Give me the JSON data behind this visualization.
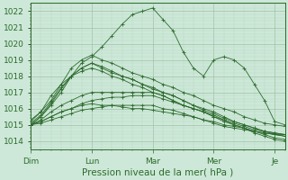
{
  "title": "Pression niveau de la mer( hPa )",
  "ylim": [
    1013.5,
    1022.5
  ],
  "yticks": [
    1014,
    1015,
    1016,
    1017,
    1018,
    1019,
    1020,
    1021,
    1022
  ],
  "day_labels": [
    "Dim",
    "Lun",
    "Mar",
    "Mer",
    "Je"
  ],
  "day_positions": [
    0,
    24,
    48,
    72,
    96
  ],
  "xlim": [
    0,
    100
  ],
  "bg_color": "#cde8d8",
  "plot_bg_color": "#cde8d8",
  "grid_major_color": "#a0c0a8",
  "grid_minor_color": "#b8d8c4",
  "line_color": "#2d6b2d",
  "marker_color": "#2d6b2d",
  "series": [
    {
      "x": [
        0,
        4,
        8,
        12,
        16,
        20,
        24,
        28,
        32,
        36,
        40,
        44,
        48,
        52,
        56,
        60,
        64,
        68,
        72,
        76,
        80,
        84,
        88,
        92,
        96,
        100
      ],
      "y": [
        1015.0,
        1015.5,
        1016.2,
        1017.0,
        1018.0,
        1018.8,
        1019.2,
        1019.8,
        1020.5,
        1021.2,
        1021.8,
        1022.0,
        1022.2,
        1021.5,
        1020.8,
        1019.5,
        1018.5,
        1018.0,
        1019.0,
        1019.2,
        1019.0,
        1018.5,
        1017.5,
        1016.5,
        1015.2,
        1015.0
      ]
    },
    {
      "x": [
        0,
        4,
        8,
        12,
        16,
        20,
        24,
        28,
        32,
        36,
        40,
        44,
        48,
        52,
        56,
        60,
        64,
        68,
        72,
        76,
        80,
        84,
        88,
        92,
        96,
        100
      ],
      "y": [
        1015.0,
        1015.3,
        1015.8,
        1016.2,
        1016.5,
        1016.8,
        1017.0,
        1017.0,
        1017.0,
        1017.0,
        1017.0,
        1017.0,
        1017.0,
        1016.8,
        1016.5,
        1016.2,
        1016.0,
        1015.8,
        1015.5,
        1015.2,
        1015.0,
        1014.8,
        1014.5,
        1014.3,
        1014.1,
        1014.0
      ]
    },
    {
      "x": [
        0,
        4,
        8,
        12,
        16,
        20,
        24,
        28,
        32,
        36,
        40,
        44,
        48,
        52,
        56,
        60,
        64,
        68,
        72,
        76,
        80,
        84,
        88,
        92,
        96,
        100
      ],
      "y": [
        1015.0,
        1015.2,
        1015.5,
        1015.8,
        1016.0,
        1016.3,
        1016.5,
        1016.6,
        1016.7,
        1016.7,
        1016.8,
        1016.8,
        1016.8,
        1016.6,
        1016.4,
        1016.2,
        1016.0,
        1015.8,
        1015.5,
        1015.3,
        1015.0,
        1014.8,
        1014.6,
        1014.4,
        1014.2,
        1014.1
      ]
    },
    {
      "x": [
        0,
        4,
        8,
        12,
        16,
        20,
        24,
        28,
        32,
        36,
        40,
        44,
        48,
        52,
        56,
        60,
        64,
        68,
        72,
        76,
        80,
        84,
        88,
        92,
        96,
        100
      ],
      "y": [
        1015.0,
        1015.1,
        1015.3,
        1015.5,
        1015.7,
        1015.9,
        1016.0,
        1016.1,
        1016.2,
        1016.2,
        1016.2,
        1016.2,
        1016.2,
        1016.0,
        1015.9,
        1015.7,
        1015.5,
        1015.3,
        1015.1,
        1014.9,
        1014.8,
        1014.7,
        1014.6,
        1014.5,
        1014.4,
        1014.4
      ]
    },
    {
      "x": [
        0,
        4,
        8,
        12,
        16,
        20,
        24,
        28,
        32,
        36,
        40,
        44,
        48,
        52,
        56,
        60,
        64,
        68,
        72,
        76,
        80,
        84,
        88,
        92,
        96,
        100
      ],
      "y": [
        1015.0,
        1015.5,
        1016.3,
        1017.2,
        1018.0,
        1018.5,
        1018.8,
        1018.5,
        1018.2,
        1018.0,
        1017.8,
        1017.5,
        1017.3,
        1017.0,
        1016.8,
        1016.5,
        1016.2,
        1016.0,
        1015.8,
        1015.5,
        1015.2,
        1015.0,
        1014.8,
        1014.6,
        1014.4,
        1014.3
      ]
    },
    {
      "x": [
        0,
        4,
        8,
        12,
        16,
        20,
        24,
        28,
        32,
        36,
        40,
        44,
        48,
        52,
        56,
        60,
        64,
        68,
        72,
        76,
        80,
        84,
        88,
        92,
        96,
        100
      ],
      "y": [
        1015.1,
        1015.6,
        1016.4,
        1017.3,
        1018.0,
        1018.5,
        1018.8,
        1018.6,
        1018.3,
        1018.0,
        1017.8,
        1017.5,
        1017.2,
        1017.0,
        1016.8,
        1016.5,
        1016.2,
        1015.9,
        1015.7,
        1015.4,
        1015.2,
        1015.0,
        1014.8,
        1014.6,
        1014.5,
        1014.4
      ]
    },
    {
      "x": [
        0,
        4,
        8,
        12,
        16,
        20,
        24,
        28,
        32,
        36,
        40,
        44,
        48,
        52,
        56,
        60,
        64,
        68,
        72,
        76,
        80,
        84,
        88,
        92,
        96,
        100
      ],
      "y": [
        1015.2,
        1015.8,
        1016.8,
        1017.5,
        1018.0,
        1018.3,
        1018.5,
        1018.3,
        1018.0,
        1017.8,
        1017.5,
        1017.3,
        1017.0,
        1016.8,
        1016.5,
        1016.2,
        1016.0,
        1015.8,
        1015.6,
        1015.3,
        1015.1,
        1014.9,
        1014.7,
        1014.6,
        1014.5,
        1014.4
      ]
    },
    {
      "x": [
        0,
        4,
        8,
        12,
        16,
        20,
        24,
        28,
        32,
        36,
        40,
        44,
        48,
        52,
        56,
        60,
        64,
        68,
        72,
        76,
        80,
        84,
        88,
        92,
        96,
        100
      ],
      "y": [
        1015.0,
        1015.2,
        1015.5,
        1015.8,
        1016.0,
        1016.2,
        1016.3,
        1016.2,
        1016.2,
        1016.1,
        1016.0,
        1016.0,
        1015.9,
        1015.8,
        1015.7,
        1015.6,
        1015.5,
        1015.3,
        1015.2,
        1015.0,
        1014.9,
        1014.8,
        1014.6,
        1014.5,
        1014.4,
        1014.3
      ]
    },
    {
      "x": [
        0,
        4,
        8,
        12,
        16,
        20,
        24,
        28,
        32,
        36,
        40,
        44,
        48,
        52,
        56,
        60,
        64,
        68,
        72,
        76,
        80,
        84,
        88,
        92,
        96,
        100
      ],
      "y": [
        1015.3,
        1015.8,
        1016.5,
        1017.5,
        1018.5,
        1019.0,
        1019.3,
        1019.0,
        1018.8,
        1018.5,
        1018.2,
        1018.0,
        1017.8,
        1017.5,
        1017.3,
        1017.0,
        1016.8,
        1016.5,
        1016.2,
        1016.0,
        1015.8,
        1015.5,
        1015.3,
        1015.1,
        1015.0,
        1014.9
      ]
    }
  ]
}
